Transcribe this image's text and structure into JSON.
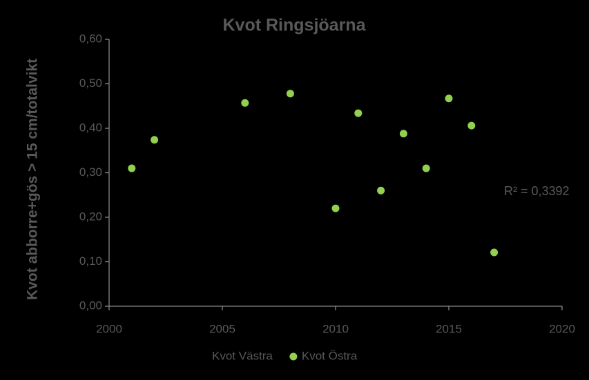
{
  "chart_data": {
    "type": "scatter",
    "title": "Kvot Ringsjöarna",
    "y_label": "Kvot abborre+gös > 15 cm/totalvikt",
    "annotation": "R² = 0,3392",
    "series": [
      {
        "name": "Kvot Västra",
        "x": [],
        "values": []
      },
      {
        "name": "Kvot Östra",
        "color": "#92d050",
        "x": [
          2001,
          2002,
          2006,
          2008,
          2010,
          2011,
          2012,
          2013,
          2014,
          2015,
          2016,
          2017
        ],
        "values": [
          0.31,
          0.374,
          0.457,
          0.478,
          0.22,
          0.434,
          0.26,
          0.388,
          0.31,
          0.467,
          0.406,
          0.121
        ]
      }
    ],
    "xlim": [
      2000,
      2020
    ],
    "xticks": [
      2000,
      2005,
      2010,
      2015,
      2020
    ],
    "ylim": [
      0,
      0.6
    ],
    "yticks": [
      {
        "value": 0,
        "label": "0,00"
      },
      {
        "value": 0.1,
        "label": "0,10"
      },
      {
        "value": 0.2,
        "label": "0,20"
      },
      {
        "value": 0.3,
        "label": "0,30"
      },
      {
        "value": 0.4,
        "label": "0,40"
      },
      {
        "value": 0.5,
        "label": "0,50"
      },
      {
        "value": 0.6,
        "label": "0,60"
      }
    ]
  }
}
